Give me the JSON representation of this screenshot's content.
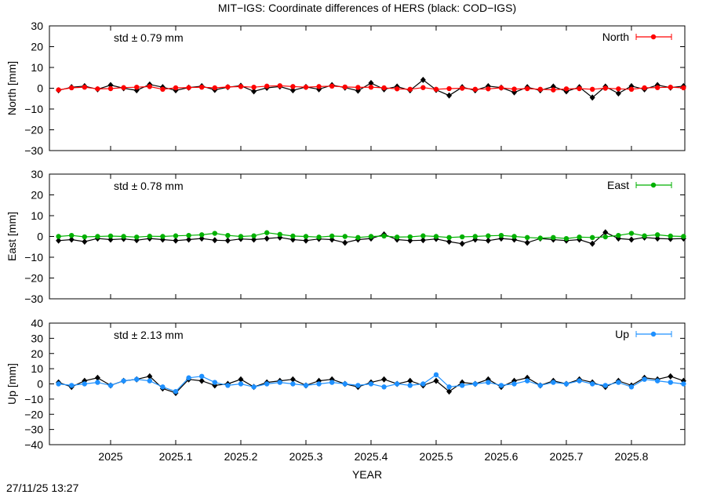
{
  "title": "MIT−IGS: Coordinate differences of HERS (black: COD−IGS)",
  "footer": "27/11/25 13:27",
  "chart_data": [
    {
      "type": "line",
      "ylabel": "North [mm]",
      "annotation": "std ± 0.79 mm",
      "annotation_color": "#ff0000",
      "xlim": [
        2024.906,
        2025.882
      ],
      "ylim": [
        -30,
        30
      ],
      "yticks": [
        {
          "value": -30,
          "label": "−30"
        },
        {
          "value": -20,
          "label": "−20"
        },
        {
          "value": -10,
          "label": "−10"
        },
        0,
        10,
        20,
        30
      ],
      "x": [
        2024.92,
        2024.94,
        2024.96,
        2024.98,
        2025,
        2025.02,
        2025.04,
        2025.06,
        2025.08,
        2025.1,
        2025.12,
        2025.14,
        2025.16,
        2025.18,
        2025.2,
        2025.22,
        2025.24,
        2025.26,
        2025.28,
        2025.3,
        2025.32,
        2025.34,
        2025.36,
        2025.38,
        2025.4,
        2025.42,
        2025.44,
        2025.46,
        2025.48,
        2025.5,
        2025.52,
        2025.54,
        2025.56,
        2025.58,
        2025.6,
        2025.62,
        2025.64,
        2025.66,
        2025.68,
        2025.7,
        2025.72,
        2025.74,
        2025.76,
        2025.78,
        2025.8,
        2025.82,
        2025.84,
        2025.86,
        2025.88
      ],
      "series": [
        {
          "color": "#000000",
          "values": [
            -1,
            0.5,
            1,
            -0.5,
            1.5,
            0,
            -1,
            1.8,
            0.5,
            -1,
            0.3,
            1,
            -0.8,
            0.5,
            1.2,
            -1.5,
            0.2,
            0.8,
            -1,
            0.6,
            -0.5,
            1.5,
            0.3,
            -1.2,
            2.5,
            -0.5,
            0.8,
            -1,
            4,
            -0.8,
            -3.5,
            0.5,
            -1,
            1,
            0.3,
            -2,
            0.5,
            -1,
            0.8,
            -1.5,
            0.5,
            -4.5,
            0.8,
            -2.5,
            1,
            -0.5,
            1.5,
            0.3,
            1
          ]
        },
        {
          "name": "North",
          "color": "#ff0000",
          "values": [
            -0.8,
            0.2,
            0.5,
            -0.3,
            -0.2,
            0.3,
            0.5,
            0.8,
            -0.5,
            0.2,
            0.3,
            0.5,
            0.2,
            0.6,
            0.8,
            0.5,
            1,
            1.2,
            0.8,
            0.5,
            0.8,
            1,
            0.6,
            0.4,
            0.5,
            0.2,
            -0.3,
            -0.5,
            0.3,
            -0.5,
            -0.2,
            0,
            -0.5,
            -0.3,
            0.2,
            -0.4,
            -0.2,
            -0.5,
            -0.8,
            -0.3,
            -0.2,
            -0.5,
            0,
            -0.3,
            -0.5,
            0.2,
            0.3,
            0.5,
            0.2
          ]
        }
      ]
    },
    {
      "type": "line",
      "ylabel": "East [mm]",
      "annotation": "std ± 0.78 mm",
      "annotation_color": "#00b000",
      "xlim": [
        2024.906,
        2025.882
      ],
      "ylim": [
        -30,
        30
      ],
      "yticks": [
        {
          "value": -30,
          "label": "−30"
        },
        {
          "value": -20,
          "label": "−20"
        },
        {
          "value": -10,
          "label": "−10"
        },
        0,
        10,
        20,
        30
      ],
      "x": [
        2024.92,
        2024.94,
        2024.96,
        2024.98,
        2025,
        2025.02,
        2025.04,
        2025.06,
        2025.08,
        2025.1,
        2025.12,
        2025.14,
        2025.16,
        2025.18,
        2025.2,
        2025.22,
        2025.24,
        2025.26,
        2025.28,
        2025.3,
        2025.32,
        2025.34,
        2025.36,
        2025.38,
        2025.4,
        2025.42,
        2025.44,
        2025.46,
        2025.48,
        2025.5,
        2025.52,
        2025.54,
        2025.56,
        2025.58,
        2025.6,
        2025.62,
        2025.64,
        2025.66,
        2025.68,
        2025.7,
        2025.72,
        2025.74,
        2025.76,
        2025.78,
        2025.8,
        2025.82,
        2025.84,
        2025.86,
        2025.88
      ],
      "series": [
        {
          "color": "#000000",
          "values": [
            -2,
            -1.5,
            -2.5,
            -1,
            -1.5,
            -1.2,
            -1.8,
            -1,
            -1.5,
            -2,
            -1.5,
            -1,
            -1.8,
            -2,
            -1.2,
            -1.5,
            -1,
            -0.5,
            -1.5,
            -2,
            -1.2,
            -1.5,
            -3,
            -1.5,
            -1,
            1,
            -1.5,
            -2,
            -1.8,
            -1.2,
            -2.5,
            -3.5,
            -1.5,
            -2,
            -1,
            -1.5,
            -3,
            -1,
            -1.5,
            -2,
            -1.5,
            -3.5,
            2,
            -1,
            -1.5,
            -0.5,
            -1,
            -1.2,
            -1
          ]
        },
        {
          "name": "East",
          "color": "#00b000",
          "values": [
            0,
            0.5,
            -0.2,
            0,
            0.2,
            0,
            -0.3,
            0.1,
            0,
            0.3,
            0.5,
            0.8,
            1.5,
            0.5,
            0,
            0.3,
            1.8,
            1,
            0.2,
            0,
            -0.3,
            0.2,
            0,
            -0.5,
            0,
            0.2,
            -0.3,
            -0.2,
            0.3,
            0,
            -0.5,
            -0.2,
            0,
            0.3,
            0.5,
            0,
            -0.5,
            -0.8,
            -0.5,
            -1,
            -0.3,
            -0.5,
            -0.2,
            0.5,
            1.5,
            0.3,
            0.8,
            0.2,
            0
          ]
        }
      ]
    },
    {
      "type": "line",
      "ylabel": "Up [mm]",
      "annotation": "std ± 2.13 mm",
      "annotation_color": "#1e90ff",
      "xlabel": "YEAR",
      "xlim": [
        2024.906,
        2025.882
      ],
      "ylim": [
        -40,
        40
      ],
      "xticks": [
        2025,
        2025.1,
        2025.2,
        2025.3,
        2025.4,
        2025.5,
        2025.6,
        2025.7,
        2025.8
      ],
      "yticks": [
        {
          "value": -40,
          "label": "−40"
        },
        {
          "value": -30,
          "label": "−30"
        },
        {
          "value": -20,
          "label": "−20"
        },
        {
          "value": -10,
          "label": "−10"
        },
        0,
        10,
        20,
        30,
        40
      ],
      "x": [
        2024.92,
        2024.94,
        2024.96,
        2024.98,
        2025,
        2025.02,
        2025.04,
        2025.06,
        2025.08,
        2025.1,
        2025.12,
        2025.14,
        2025.16,
        2025.18,
        2025.2,
        2025.22,
        2025.24,
        2025.26,
        2025.28,
        2025.3,
        2025.32,
        2025.34,
        2025.36,
        2025.38,
        2025.4,
        2025.42,
        2025.44,
        2025.46,
        2025.48,
        2025.5,
        2025.52,
        2025.54,
        2025.56,
        2025.58,
        2025.6,
        2025.62,
        2025.64,
        2025.66,
        2025.68,
        2025.7,
        2025.72,
        2025.74,
        2025.76,
        2025.78,
        2025.8,
        2025.82,
        2025.84,
        2025.86,
        2025.88
      ],
      "series": [
        {
          "color": "#000000",
          "values": [
            1,
            -2,
            2,
            4,
            -1,
            2,
            3,
            5,
            -3,
            -6,
            3,
            2,
            -1,
            0,
            3,
            -2,
            1,
            2,
            3,
            -1,
            2,
            3,
            0,
            -2,
            1,
            3,
            0,
            2,
            -1,
            2,
            -5,
            1,
            0,
            3,
            -2,
            2,
            4,
            -1,
            2,
            0,
            3,
            1,
            -2,
            2,
            -1,
            4,
            3,
            5,
            2
          ]
        },
        {
          "name": "Up",
          "color": "#1e90ff",
          "values": [
            0,
            -1,
            0,
            1,
            -1,
            2,
            3,
            2,
            -2,
            -5,
            4,
            5,
            1,
            -1,
            0,
            -2,
            0,
            1,
            0,
            -1,
            0,
            1,
            0,
            -1,
            0,
            -2,
            0,
            -1,
            0,
            6,
            -2,
            -1,
            0,
            1,
            -1,
            0,
            2,
            -1,
            1,
            0,
            2,
            0,
            -1,
            1,
            -2,
            3,
            2,
            1,
            0
          ]
        }
      ]
    }
  ]
}
